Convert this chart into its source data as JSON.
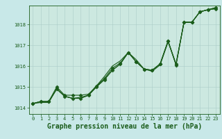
{
  "title": "Graphe pression niveau de la mer (hPa)",
  "background_color": "#c8e8e8",
  "plot_bg_color": "#cce8e0",
  "grid_color": "#aaccc8",
  "line_color": "#1a5c1a",
  "marker_color": "#1a5c1a",
  "xlim": [
    -0.5,
    23.5
  ],
  "ylim": [
    1013.7,
    1018.9
  ],
  "yticks": [
    1014,
    1015,
    1016,
    1017,
    1018
  ],
  "xticks": [
    0,
    1,
    2,
    3,
    4,
    5,
    6,
    7,
    8,
    9,
    10,
    11,
    12,
    13,
    14,
    15,
    16,
    17,
    18,
    19,
    20,
    21,
    22,
    23
  ],
  "series": [
    [
      1014.2,
      1014.3,
      1014.3,
      1014.9,
      1014.55,
      1014.45,
      1014.45,
      1014.6,
      1015.0,
      1015.35,
      1015.8,
      1016.1,
      1016.65,
      1016.2,
      1015.85,
      1015.8,
      1016.1,
      1017.2,
      1016.05,
      1018.1,
      1018.1,
      1018.6,
      1018.7,
      1018.75
    ],
    [
      1014.2,
      1014.3,
      1014.3,
      1014.9,
      1014.55,
      1014.45,
      1014.45,
      1014.6,
      1015.0,
      1015.35,
      1015.8,
      1016.1,
      1016.65,
      1016.2,
      1015.85,
      1015.8,
      1016.1,
      1017.2,
      1016.05,
      1018.1,
      1018.1,
      1018.6,
      1018.7,
      1018.75
    ],
    [
      1014.2,
      1014.3,
      1014.3,
      1015.0,
      1014.6,
      1014.6,
      1014.6,
      1014.65,
      1015.05,
      1015.4,
      1015.9,
      1016.15,
      1016.65,
      1016.2,
      1015.85,
      1015.8,
      1016.1,
      1017.2,
      1016.1,
      1018.1,
      1018.1,
      1018.6,
      1018.7,
      1018.8
    ],
    [
      1014.2,
      1014.25,
      1014.25,
      1014.9,
      1014.55,
      1014.45,
      1014.5,
      1014.6,
      1015.05,
      1015.5,
      1016.0,
      1016.25,
      1016.65,
      1016.3,
      1015.85,
      1015.75,
      1016.05,
      1017.15,
      1016.1,
      1018.1,
      1018.1,
      1018.6,
      1018.7,
      1018.8
    ]
  ],
  "show_markers": [
    false,
    true,
    true,
    false
  ],
  "marker_size": 2.5,
  "linewidth": 0.8,
  "title_fontsize": 7,
  "tick_fontsize": 5,
  "fig_width": 3.2,
  "fig_height": 2.0,
  "dpi": 100
}
